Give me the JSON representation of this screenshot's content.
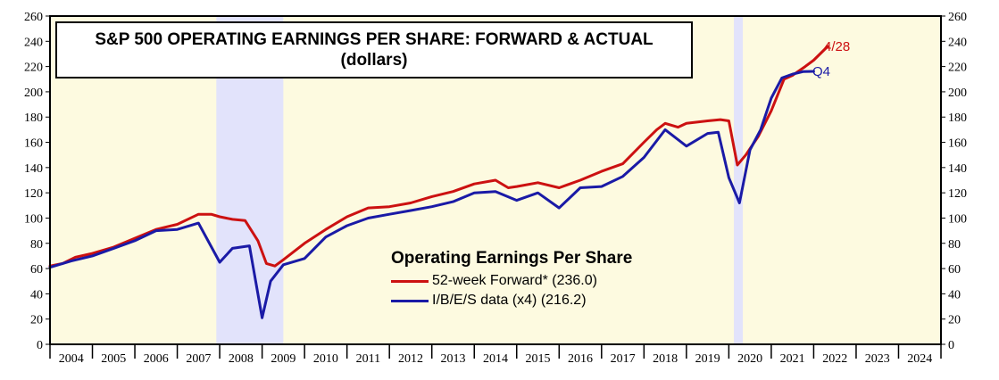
{
  "chart_data": {
    "type": "line",
    "title": "S&P 500 OPERATING EARNINGS PER SHARE: FORWARD & ACTUAL",
    "subtitle": "(dollars)",
    "legend_title": "Operating Earnings Per Share",
    "ylim": [
      0,
      260
    ],
    "y_ticks": [
      0,
      20,
      40,
      60,
      80,
      100,
      120,
      140,
      160,
      180,
      200,
      220,
      240,
      260
    ],
    "xlim": [
      2004,
      2025
    ],
    "x_tick_labels": [
      "2004",
      "2005",
      "2006",
      "2007",
      "2008",
      "2009",
      "2010",
      "2011",
      "2012",
      "2013",
      "2014",
      "2015",
      "2016",
      "2017",
      "2018",
      "2019",
      "2020",
      "2021",
      "2022",
      "2023",
      "2024"
    ],
    "recessions": [
      [
        2007.92,
        2009.5
      ],
      [
        2020.12,
        2020.33
      ]
    ],
    "colors": {
      "forward": "#cc1111",
      "actual": "#1a1aa6",
      "background": "#fdfae0",
      "recession": "#e2e3fb"
    },
    "series": [
      {
        "name": "52-week Forward*",
        "legend_label": "52-week Forward* (236.0)",
        "end_label": "4/28",
        "x": [
          2004.0,
          2004.3,
          2004.6,
          2005.0,
          2005.5,
          2006.0,
          2006.5,
          2007.0,
          2007.5,
          2007.8,
          2008.0,
          2008.3,
          2008.6,
          2008.9,
          2009.1,
          2009.3,
          2009.5,
          2010.0,
          2010.5,
          2011.0,
          2011.5,
          2012.0,
          2012.5,
          2013.0,
          2013.5,
          2014.0,
          2014.5,
          2014.8,
          2015.0,
          2015.5,
          2016.0,
          2016.5,
          2017.0,
          2017.5,
          2018.0,
          2018.3,
          2018.5,
          2018.8,
          2019.0,
          2019.5,
          2019.8,
          2020.0,
          2020.2,
          2020.4,
          2020.7,
          2021.0,
          2021.3,
          2021.5,
          2021.8,
          2022.0,
          2022.33
        ],
        "values": [
          62,
          64,
          69,
          72,
          77,
          84,
          91,
          95,
          103,
          103,
          101,
          99,
          98,
          82,
          64,
          62,
          67,
          80,
          91,
          101,
          108,
          109,
          112,
          117,
          121,
          127,
          130,
          124,
          125,
          128,
          124,
          130,
          137,
          143,
          160,
          170,
          175,
          172,
          175,
          177,
          178,
          177,
          142,
          150,
          165,
          185,
          210,
          213,
          220,
          225,
          236.0
        ]
      },
      {
        "name": "I/B/E/S data (x4)",
        "legend_label": "I/B/E/S data (x4) (216.2)",
        "end_label": "Q4",
        "x": [
          2004.0,
          2004.5,
          2005.0,
          2005.5,
          2006.0,
          2006.5,
          2007.0,
          2007.5,
          2008.0,
          2008.3,
          2008.7,
          2009.0,
          2009.2,
          2009.5,
          2010.0,
          2010.5,
          2011.0,
          2011.5,
          2012.0,
          2012.5,
          2013.0,
          2013.5,
          2014.0,
          2014.5,
          2015.0,
          2015.5,
          2016.0,
          2016.5,
          2017.0,
          2017.5,
          2018.0,
          2018.5,
          2019.0,
          2019.5,
          2019.75,
          2020.0,
          2020.25,
          2020.5,
          2020.75,
          2021.0,
          2021.25,
          2021.5,
          2021.75,
          2022.0
        ],
        "values": [
          61,
          66,
          70,
          76,
          82,
          90,
          91,
          96,
          65,
          76,
          78,
          21,
          50,
          63,
          68,
          85,
          94,
          100,
          103,
          106,
          109,
          113,
          120,
          121,
          114,
          120,
          108,
          124,
          125,
          133,
          148,
          170,
          157,
          167,
          168,
          132,
          112,
          154,
          170,
          195,
          211,
          214,
          216,
          216.2
        ]
      }
    ]
  }
}
